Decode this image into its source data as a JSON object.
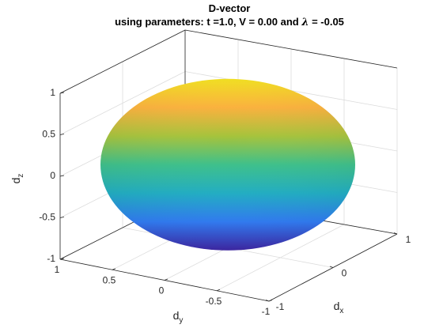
{
  "chart_data": {
    "type": "surface3d",
    "title": "D-vector",
    "subtitle_prefix": "using parameters: t =1.0, V = 0.00 and ",
    "subtitle_symbol": "λ",
    "subtitle_suffix": " = -0.05",
    "xlabel_main": "d",
    "xlabel_sub": "x",
    "ylabel_main": "d",
    "ylabel_sub": "y",
    "zlabel_main": "d",
    "zlabel_sub": "z",
    "xlim": [
      -1,
      1
    ],
    "ylim": [
      -1,
      1
    ],
    "zlim": [
      -1,
      1
    ],
    "x_ticks": [
      {
        "value": -1,
        "label": "-1"
      },
      {
        "value": 0,
        "label": "0"
      },
      {
        "value": 1,
        "label": "1"
      }
    ],
    "y_ticks": [
      {
        "value": 1,
        "label": "1"
      },
      {
        "value": 0.5,
        "label": "0.5"
      },
      {
        "value": 0,
        "label": "0"
      },
      {
        "value": -0.5,
        "label": "-0.5"
      },
      {
        "value": -1,
        "label": "-1"
      }
    ],
    "z_ticks": [
      {
        "value": 1,
        "label": "1"
      },
      {
        "value": 0.5,
        "label": "0.5"
      },
      {
        "value": 0,
        "label": "0"
      },
      {
        "value": -0.5,
        "label": "-0.5"
      },
      {
        "value": -1,
        "label": "-1"
      }
    ],
    "surface": {
      "shape": "oblate-spheroid",
      "radius_xy": 1.0,
      "radius_z": 0.7,
      "colormap": "parula",
      "color_by": "z",
      "colors": [
        "#3e26a8",
        "#2f7cf6",
        "#1faec4",
        "#3cc08a",
        "#a6c33b",
        "#fbb13c",
        "#f4e21f"
      ]
    },
    "grid": true,
    "box": true
  }
}
